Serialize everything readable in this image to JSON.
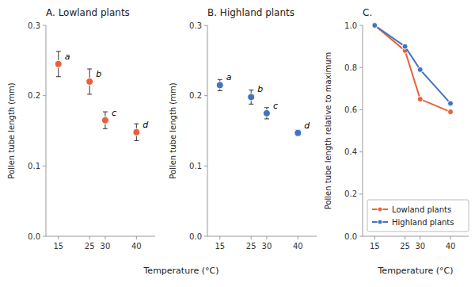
{
  "chart_data": [
    {
      "type": "scatter",
      "title": "A. Lowland plants",
      "x": [
        15,
        25,
        30,
        40
      ],
      "values": [
        0.245,
        0.22,
        0.165,
        0.148
      ],
      "errors": [
        0.018,
        0.018,
        0.012,
        0.012
      ],
      "annotations": [
        "a",
        "b",
        "c",
        "d"
      ],
      "color": "#E8613C",
      "marker": "circle",
      "xlabel": "Temperature (°C)",
      "ylabel": "Pollen tube length (mm)",
      "xlim": [
        11,
        46
      ],
      "xticks": [
        15,
        25,
        30,
        40
      ],
      "ylim": [
        0.0,
        0.3
      ],
      "yticks": [
        {
          "value": 0.0,
          "label": "0.0"
        },
        0.1,
        0.2,
        0.3
      ]
    },
    {
      "type": "scatter",
      "title": "B. Highland plants",
      "x": [
        15,
        25,
        30,
        40
      ],
      "values": [
        0.215,
        0.198,
        0.175,
        0.147
      ],
      "errors": [
        0.008,
        0.01,
        0.008,
        0.004
      ],
      "annotations": [
        "a",
        "b",
        "c",
        "d"
      ],
      "color": "#4472C4",
      "marker": "circle",
      "ylabel": "Pollen tube length (mm)",
      "xlim": [
        11,
        46
      ],
      "xticks": [
        15,
        25,
        30,
        40
      ],
      "ylim": [
        0.0,
        0.3
      ],
      "yticks": [
        {
          "value": 0.0,
          "label": "0.0"
        },
        0.1,
        0.2,
        0.3
      ]
    },
    {
      "type": "line",
      "title": "C.",
      "x": [
        15,
        25,
        30,
        40
      ],
      "series": [
        {
          "name": "Lowland plants",
          "color": "#E8613C",
          "marker": "circle",
          "values": [
            1.0,
            0.88,
            0.65,
            0.59
          ]
        },
        {
          "name": "Highland plants",
          "color": "#4472C4",
          "marker": "circle",
          "values": [
            1.0,
            0.9,
            0.79,
            0.63
          ]
        }
      ],
      "legend": "lower left",
      "xlabel": "Temperature (°C)",
      "ylabel": "Pollen tube length relative to maximum",
      "xlim": [
        11,
        46
      ],
      "xticks": [
        15,
        25,
        30,
        40
      ],
      "ylim": [
        0.0,
        1.0
      ],
      "yticks": [
        {
          "value": 0.0,
          "label": "0.0"
        },
        0.2,
        0.4,
        0.6,
        0.8,
        {
          "value": 1.0,
          "label": "1.0"
        }
      ]
    }
  ]
}
